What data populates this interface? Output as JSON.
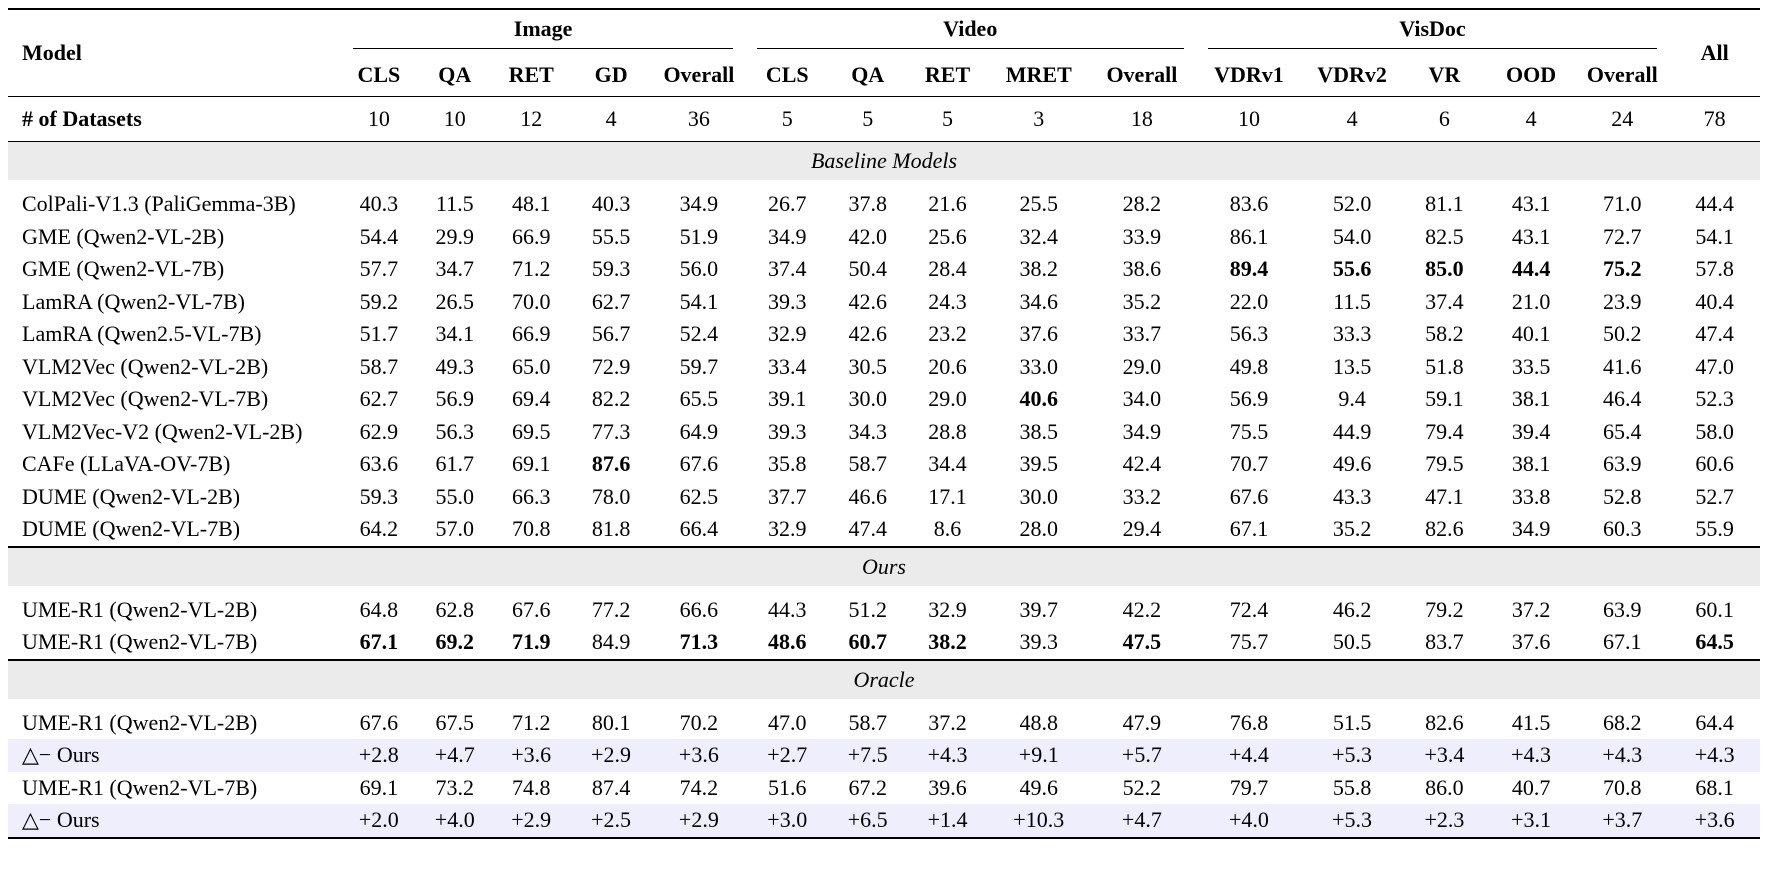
{
  "header": {
    "model": "Model",
    "groups": [
      {
        "label": "Image",
        "columns": [
          "CLS",
          "QA",
          "RET",
          "GD",
          "Overall"
        ]
      },
      {
        "label": "Video",
        "columns": [
          "CLS",
          "QA",
          "RET",
          "MRET",
          "Overall"
        ]
      },
      {
        "label": "VisDoc",
        "columns": [
          "VDRv1",
          "VDRv2",
          "VR",
          "OOD",
          "Overall"
        ]
      }
    ],
    "all": "All"
  },
  "datasets": {
    "label": "# of Datasets",
    "values": [
      "10",
      "10",
      "12",
      "4",
      "36",
      "5",
      "5",
      "5",
      "3",
      "18",
      "10",
      "4",
      "6",
      "4",
      "24",
      "78"
    ]
  },
  "sections": [
    {
      "title": "Baseline Models",
      "rows": [
        {
          "model": "ColPali-V1.3 (PaliGemma-3B)",
          "values": [
            "40.3",
            "11.5",
            "48.1",
            "40.3",
            "34.9",
            "26.7",
            "37.8",
            "21.6",
            "25.5",
            "28.2",
            "83.6",
            "52.0",
            "81.1",
            "43.1",
            "71.0",
            "44.4"
          ]
        },
        {
          "model": "GME (Qwen2-VL-2B)",
          "values": [
            "54.4",
            "29.9",
            "66.9",
            "55.5",
            "51.9",
            "34.9",
            "42.0",
            "25.6",
            "32.4",
            "33.9",
            "86.1",
            "54.0",
            "82.5",
            "43.1",
            "72.7",
            "54.1"
          ]
        },
        {
          "model": "GME (Qwen2-VL-7B)",
          "values": [
            "57.7",
            "34.7",
            "71.2",
            "59.3",
            "56.0",
            "37.4",
            "50.4",
            "28.4",
            "38.2",
            "38.6",
            "89.4",
            "55.6",
            "85.0",
            "44.4",
            "75.2",
            "57.8"
          ],
          "bold": [
            10,
            11,
            12,
            13,
            14
          ]
        },
        {
          "model": "LamRA (Qwen2-VL-7B)",
          "values": [
            "59.2",
            "26.5",
            "70.0",
            "62.7",
            "54.1",
            "39.3",
            "42.6",
            "24.3",
            "34.6",
            "35.2",
            "22.0",
            "11.5",
            "37.4",
            "21.0",
            "23.9",
            "40.4"
          ]
        },
        {
          "model": "LamRA (Qwen2.5-VL-7B)",
          "values": [
            "51.7",
            "34.1",
            "66.9",
            "56.7",
            "52.4",
            "32.9",
            "42.6",
            "23.2",
            "37.6",
            "33.7",
            "56.3",
            "33.3",
            "58.2",
            "40.1",
            "50.2",
            "47.4"
          ]
        },
        {
          "model": "VLM2Vec (Qwen2-VL-2B)",
          "values": [
            "58.7",
            "49.3",
            "65.0",
            "72.9",
            "59.7",
            "33.4",
            "30.5",
            "20.6",
            "33.0",
            "29.0",
            "49.8",
            "13.5",
            "51.8",
            "33.5",
            "41.6",
            "47.0"
          ]
        },
        {
          "model": "VLM2Vec (Qwen2-VL-7B)",
          "values": [
            "62.7",
            "56.9",
            "69.4",
            "82.2",
            "65.5",
            "39.1",
            "30.0",
            "29.0",
            "40.6",
            "34.0",
            "56.9",
            "9.4",
            "59.1",
            "38.1",
            "46.4",
            "52.3"
          ],
          "bold": [
            8
          ]
        },
        {
          "model": "VLM2Vec-V2 (Qwen2-VL-2B)",
          "values": [
            "62.9",
            "56.3",
            "69.5",
            "77.3",
            "64.9",
            "39.3",
            "34.3",
            "28.8",
            "38.5",
            "34.9",
            "75.5",
            "44.9",
            "79.4",
            "39.4",
            "65.4",
            "58.0"
          ]
        },
        {
          "model": "CAFe (LLaVA-OV-7B)",
          "values": [
            "63.6",
            "61.7",
            "69.1",
            "87.6",
            "67.6",
            "35.8",
            "58.7",
            "34.4",
            "39.5",
            "42.4",
            "70.7",
            "49.6",
            "79.5",
            "38.1",
            "63.9",
            "60.6"
          ],
          "bold": [
            3
          ]
        },
        {
          "model": "DUME (Qwen2-VL-2B)",
          "values": [
            "59.3",
            "55.0",
            "66.3",
            "78.0",
            "62.5",
            "37.7",
            "46.6",
            "17.1",
            "30.0",
            "33.2",
            "67.6",
            "43.3",
            "47.1",
            "33.8",
            "52.8",
            "52.7"
          ]
        },
        {
          "model": "DUME (Qwen2-VL-7B)",
          "values": [
            "64.2",
            "57.0",
            "70.8",
            "81.8",
            "66.4",
            "32.9",
            "47.4",
            "8.6",
            "28.0",
            "29.4",
            "67.1",
            "35.2",
            "82.6",
            "34.9",
            "60.3",
            "55.9"
          ]
        }
      ]
    },
    {
      "title": "Ours",
      "rows": [
        {
          "model": "UME-R1 (Qwen2-VL-2B)",
          "values": [
            "64.8",
            "62.8",
            "67.6",
            "77.2",
            "66.6",
            "44.3",
            "51.2",
            "32.9",
            "39.7",
            "42.2",
            "72.4",
            "46.2",
            "79.2",
            "37.2",
            "63.9",
            "60.1"
          ]
        },
        {
          "model": "UME-R1 (Qwen2-VL-7B)",
          "values": [
            "67.1",
            "69.2",
            "71.9",
            "84.9",
            "71.3",
            "48.6",
            "60.7",
            "38.2",
            "39.3",
            "47.5",
            "75.7",
            "50.5",
            "83.7",
            "37.6",
            "67.1",
            "64.5"
          ],
          "bold": [
            0,
            1,
            2,
            4,
            5,
            6,
            7,
            9,
            15
          ]
        }
      ]
    },
    {
      "title": "Oracle",
      "rows": [
        {
          "model": "UME-R1 (Qwen2-VL-2B)",
          "values": [
            "67.6",
            "67.5",
            "71.2",
            "80.1",
            "70.2",
            "47.0",
            "58.7",
            "37.2",
            "48.8",
            "47.9",
            "76.8",
            "51.5",
            "82.6",
            "41.5",
            "68.2",
            "64.4"
          ]
        },
        {
          "model": "△− Ours",
          "values": [
            "+2.8",
            "+4.7",
            "+3.6",
            "+2.9",
            "+3.6",
            "+2.7",
            "+7.5",
            "+4.3",
            "+9.1",
            "+5.7",
            "+4.4",
            "+5.3",
            "+3.4",
            "+4.3",
            "+4.3",
            "+4.3"
          ],
          "highlight": true
        },
        {
          "model": "UME-R1 (Qwen2-VL-7B)",
          "values": [
            "69.1",
            "73.2",
            "74.8",
            "87.4",
            "74.2",
            "51.6",
            "67.2",
            "39.6",
            "49.6",
            "52.2",
            "79.7",
            "55.8",
            "86.0",
            "40.7",
            "70.8",
            "68.1"
          ]
        },
        {
          "model": "△− Ours",
          "values": [
            "+2.0",
            "+4.0",
            "+2.9",
            "+2.5",
            "+2.9",
            "+3.0",
            "+6.5",
            "+1.4",
            "+10.3",
            "+4.7",
            "+4.0",
            "+5.3",
            "+2.3",
            "+3.1",
            "+3.7",
            "+3.6"
          ],
          "highlight": true
        }
      ]
    }
  ]
}
